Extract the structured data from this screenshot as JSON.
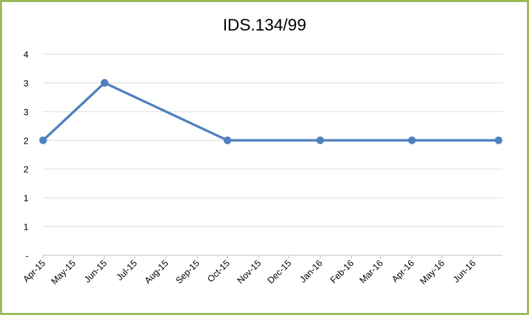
{
  "chart_data": {
    "type": "line",
    "title": "IDS.134/99",
    "xlabel": "",
    "ylabel": "",
    "x_tick_labels": [
      "Apr-15",
      "May-15",
      "Jun-15",
      "Jul-15",
      "Aug-15",
      "Sep-15",
      "Oct-15",
      "Nov-15",
      "Dec-15",
      "Jan-16",
      "Feb-16",
      "Mar-16",
      "Apr-16",
      "May-16",
      "Jun-16"
    ],
    "x_range": [
      "2015-04-01",
      "2016-06-30"
    ],
    "y_tick_labels": [
      "-",
      "1",
      "1",
      "2",
      "2",
      "3",
      "3",
      "4"
    ],
    "ylim": [
      0,
      3.5
    ],
    "grid": true,
    "legend": "none",
    "series": [
      {
        "points": [
          {
            "x": "2015-04-01",
            "y": 2
          },
          {
            "x": "2015-06-01",
            "y": 3
          },
          {
            "x": "2015-10-01",
            "y": 2
          },
          {
            "x": "2016-01-01",
            "y": 2
          },
          {
            "x": "2016-04-01",
            "y": 2
          },
          {
            "x": "2016-06-26",
            "y": 2
          }
        ],
        "color": "#4F81BD"
      }
    ],
    "colors": {
      "frame": "#9BBB59",
      "grid": "#D9D9D9",
      "axis": "#BFBFBF"
    }
  }
}
